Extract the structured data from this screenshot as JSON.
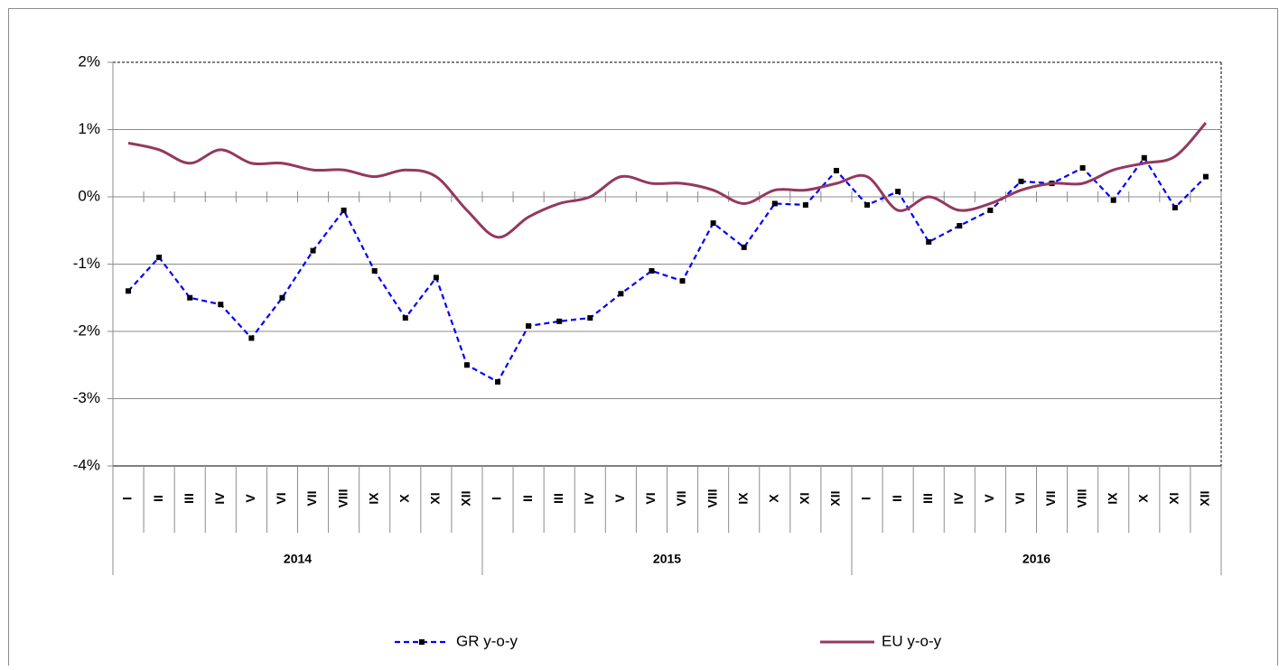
{
  "chart_data": {
    "type": "line",
    "categories": [
      "I",
      "II",
      "III",
      "IV",
      "V",
      "VI",
      "VII",
      "VIII",
      "IX",
      "X",
      "XI",
      "XII",
      "I",
      "II",
      "III",
      "IV",
      "V",
      "VI",
      "VII",
      "VIII",
      "IX",
      "X",
      "XI",
      "XII",
      "I",
      "II",
      "III",
      "IV",
      "V",
      "VI",
      "VII",
      "VIII",
      "IX",
      "X",
      "XI",
      "XII"
    ],
    "groups": [
      "2014",
      "2015",
      "2016"
    ],
    "ylim": [
      -4,
      2
    ],
    "yticks": [
      {
        "value": -4,
        "label": "-4%"
      },
      {
        "value": -3,
        "label": "-3%"
      },
      {
        "value": -2,
        "label": "-2%"
      },
      {
        "value": -1,
        "label": "-1%"
      },
      {
        "value": 0,
        "label": "0%"
      },
      {
        "value": 1,
        "label": "1%"
      },
      {
        "value": 2,
        "label": "2%"
      }
    ],
    "grid": true,
    "legend": "bottom",
    "series": [
      {
        "name": "GR y-o-y",
        "color": "#0000ff",
        "dashed": true,
        "marker_color": "#000000",
        "values": [
          -1.4,
          -0.9,
          -1.5,
          -1.6,
          -2.1,
          -1.5,
          -0.8,
          -0.2,
          -1.1,
          -1.8,
          -1.2,
          -2.5,
          -2.75,
          -1.92,
          -1.85,
          -1.8,
          -1.44,
          -1.1,
          -1.25,
          -0.39,
          -0.75,
          -0.1,
          -0.12,
          0.39,
          -0.12,
          0.08,
          -0.67,
          -0.43,
          -0.2,
          0.23,
          0.2,
          0.43,
          -0.05,
          0.58,
          -0.16,
          0.3
        ]
      },
      {
        "name": "EU y-o-y",
        "color": "#94385f",
        "smooth": true,
        "values": [
          0.8,
          0.7,
          0.5,
          0.7,
          0.5,
          0.5,
          0.4,
          0.4,
          0.3,
          0.4,
          0.3,
          -0.2,
          -0.6,
          -0.3,
          -0.1,
          0,
          0.3,
          0.2,
          0.2,
          0.1,
          -0.1,
          0.1,
          0.1,
          0.2,
          0.3,
          -0.2,
          0,
          -0.2,
          -0.1,
          0.1,
          0.2,
          0.2,
          0.4,
          0.5,
          0.6,
          1.1
        ]
      }
    ]
  }
}
